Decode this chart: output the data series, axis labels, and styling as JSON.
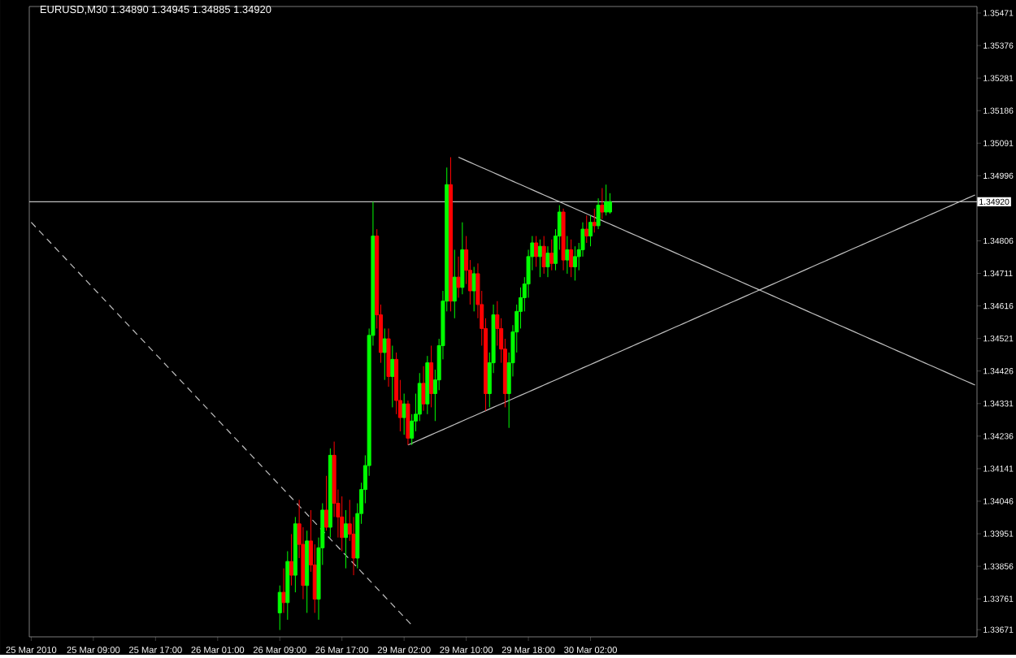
{
  "chart_data": {
    "type": "candlestick",
    "title": "EURUSD,M30  1.34890 1.34945 1.34885 1.34920",
    "categories": [
      "25 Mar 2010",
      null,
      null,
      null,
      null,
      null,
      null,
      null,
      null,
      null,
      null,
      null,
      null,
      null,
      null,
      null,
      "25 Mar 09:00",
      null,
      null,
      null,
      null,
      null,
      null,
      null,
      null,
      null,
      null,
      null,
      null,
      null,
      null,
      null,
      "25 Mar 17:00",
      null,
      null,
      null,
      null,
      null,
      null,
      null,
      null,
      null,
      null,
      null,
      null,
      null,
      null,
      null,
      "26 Mar 01:00",
      null,
      null,
      null,
      null,
      null,
      null,
      null,
      null,
      null,
      null,
      null,
      null,
      null,
      null,
      null,
      "26 Mar 09:00",
      null,
      null,
      null,
      null,
      null,
      null,
      null,
      null,
      null,
      null,
      null,
      null,
      null,
      null,
      null,
      "26 Mar 17:00",
      null,
      null,
      null,
      null,
      null,
      null,
      null,
      null,
      null,
      null,
      null,
      null,
      null,
      null,
      null,
      "29 Mar 02:00",
      null,
      null,
      null,
      null,
      null,
      null,
      null,
      null,
      null,
      null,
      null,
      null,
      null,
      null,
      null,
      "29 Mar 10:00",
      null,
      null,
      null,
      null,
      null,
      null,
      null,
      null,
      null,
      null,
      null,
      null,
      null,
      null,
      null,
      "29 Mar 18:00",
      null,
      null,
      null,
      null,
      null,
      null,
      null,
      null,
      null,
      null,
      null,
      null,
      null,
      null,
      null,
      "30 Mar 02:00",
      null,
      null,
      null,
      null,
      null,
      null,
      null,
      null,
      null,
      null,
      null,
      null,
      null,
      null,
      null,
      null,
      null,
      null,
      null,
      null,
      null,
      null,
      null,
      null,
      null,
      null,
      null,
      null,
      null,
      null,
      null,
      null,
      null,
      null,
      null,
      null,
      null,
      null,
      null,
      null,
      null,
      null,
      null,
      null,
      null,
      null,
      null,
      null,
      null,
      null,
      null,
      null,
      null,
      null,
      null,
      null,
      null,
      null,
      null,
      null,
      null,
      null,
      null,
      null,
      null,
      null,
      null,
      null,
      null,
      null,
      null,
      null,
      null,
      null,
      null,
      null,
      null,
      null,
      null,
      null,
      null,
      null,
      null,
      null,
      null,
      null,
      null,
      null,
      null,
      null,
      null,
      null,
      null,
      null,
      null,
      null,
      null,
      null,
      null
    ],
    "ohlc": [
      null,
      null,
      null,
      null,
      null,
      null,
      null,
      null,
      null,
      null,
      null,
      null,
      null,
      null,
      null,
      null,
      null,
      null,
      null,
      null,
      null,
      null,
      null,
      null,
      null,
      null,
      null,
      null,
      null,
      null,
      null,
      null,
      null,
      null,
      null,
      null,
      null,
      null,
      null,
      null,
      null,
      null,
      null,
      null,
      null,
      null,
      null,
      null,
      null,
      null,
      null,
      null,
      null,
      null,
      null,
      null,
      null,
      null,
      null,
      null,
      null,
      null,
      null,
      null,
      [
        1.3372,
        1.338,
        1.3367,
        1.3378
      ],
      [
        1.3378,
        1.3385,
        1.3372,
        1.3375
      ],
      [
        1.3375,
        1.339,
        1.337,
        1.3387
      ],
      [
        1.3387,
        1.3395,
        1.338,
        1.3383
      ],
      [
        1.3383,
        1.34,
        1.3378,
        1.3398
      ],
      [
        1.3398,
        1.3405,
        1.3388,
        1.3392
      ],
      [
        1.3392,
        1.3397,
        1.3376,
        1.338
      ],
      [
        1.338,
        1.3396,
        1.3372,
        1.3393
      ],
      [
        1.3393,
        1.3402,
        1.3384,
        1.3386
      ],
      [
        1.3386,
        1.3392,
        1.3372,
        1.3376
      ],
      [
        1.3376,
        1.3394,
        1.337,
        1.3391
      ],
      [
        1.3391,
        1.3404,
        1.3386,
        1.3402
      ],
      [
        1.3402,
        1.3412,
        1.3396,
        1.3397
      ],
      [
        1.3397,
        1.342,
        1.3394,
        1.3418
      ],
      [
        1.3418,
        1.3422,
        1.34,
        1.3404
      ],
      [
        1.3404,
        1.3408,
        1.3394,
        1.34
      ],
      [
        1.34,
        1.3406,
        1.339,
        1.3394
      ],
      [
        1.3394,
        1.3402,
        1.3385,
        1.3398
      ],
      [
        1.3398,
        1.3405,
        1.3393,
        1.3395
      ],
      [
        1.3395,
        1.34,
        1.3383,
        1.3388
      ],
      [
        1.3388,
        1.3404,
        1.3385,
        1.3401
      ],
      [
        1.3401,
        1.341,
        1.3398,
        1.3408
      ],
      [
        1.3408,
        1.3418,
        1.3404,
        1.3415
      ],
      [
        1.3415,
        1.3455,
        1.3412,
        1.3453
      ],
      [
        1.3453,
        1.3492,
        1.345,
        1.3482
      ],
      [
        1.3482,
        1.3484,
        1.3455,
        1.3459
      ],
      [
        1.3459,
        1.3462,
        1.3445,
        1.3448
      ],
      [
        1.3448,
        1.3455,
        1.344,
        1.3452
      ],
      [
        1.3452,
        1.3455,
        1.3438,
        1.3441
      ],
      [
        1.3441,
        1.345,
        1.3432,
        1.3446
      ],
      [
        1.3446,
        1.3448,
        1.343,
        1.3434
      ],
      [
        1.3434,
        1.344,
        1.3425,
        1.3429
      ],
      [
        1.3429,
        1.3436,
        1.3424,
        1.3433
      ],
      [
        1.3433,
        1.3434,
        1.3421,
        1.3423
      ],
      [
        1.3423,
        1.343,
        1.3421,
        1.3428
      ],
      [
        1.3428,
        1.3436,
        1.3425,
        1.343
      ],
      [
        1.343,
        1.3442,
        1.3428,
        1.3439
      ],
      [
        1.3439,
        1.3444,
        1.3431,
        1.3433
      ],
      [
        1.3433,
        1.3447,
        1.343,
        1.3445
      ],
      [
        1.3445,
        1.345,
        1.3432,
        1.3436
      ],
      [
        1.3436,
        1.3443,
        1.3428,
        1.344
      ],
      [
        1.344,
        1.3452,
        1.3437,
        1.345
      ],
      [
        1.345,
        1.3466,
        1.3446,
        1.3463
      ],
      [
        1.3463,
        1.3502,
        1.346,
        1.3497
      ],
      [
        1.3497,
        1.3505,
        1.346,
        1.3463
      ],
      [
        1.3463,
        1.3478,
        1.3458,
        1.347
      ],
      [
        1.347,
        1.3476,
        1.3464,
        1.3467
      ],
      [
        1.3467,
        1.3486,
        1.3465,
        1.3478
      ],
      [
        1.3478,
        1.3482,
        1.3468,
        1.3472
      ],
      [
        1.3472,
        1.3475,
        1.3462,
        1.3466
      ],
      [
        1.3466,
        1.3473,
        1.346,
        1.3471
      ],
      [
        1.3471,
        1.3474,
        1.3458,
        1.3462
      ],
      [
        1.3462,
        1.3466,
        1.345,
        1.3455
      ],
      [
        1.3455,
        1.3458,
        1.3431,
        1.3436
      ],
      [
        1.3436,
        1.3448,
        1.3432,
        1.3445
      ],
      [
        1.3445,
        1.3462,
        1.3442,
        1.3459
      ],
      [
        1.3459,
        1.3463,
        1.345,
        1.3455
      ],
      [
        1.3455,
        1.3458,
        1.3445,
        1.3449
      ],
      [
        1.3449,
        1.3452,
        1.3432,
        1.3436
      ],
      [
        1.3436,
        1.3448,
        1.3426,
        1.3445
      ],
      [
        1.3445,
        1.3456,
        1.3441,
        1.3454
      ],
      [
        1.3454,
        1.3462,
        1.3448,
        1.346
      ],
      [
        1.346,
        1.3467,
        1.3455,
        1.3464
      ],
      [
        1.3464,
        1.347,
        1.346,
        1.3468
      ],
      [
        1.3468,
        1.3478,
        1.3464,
        1.3476
      ],
      [
        1.3476,
        1.3482,
        1.3472,
        1.348
      ],
      [
        1.348,
        1.3482,
        1.3473,
        1.3476
      ],
      [
        1.3476,
        1.3481,
        1.347,
        1.3479
      ],
      [
        1.3479,
        1.3482,
        1.3471,
        1.3473
      ],
      [
        1.3473,
        1.3479,
        1.347,
        1.3477
      ],
      [
        1.3477,
        1.3481,
        1.3472,
        1.3474
      ],
      [
        1.3474,
        1.3484,
        1.3472,
        1.3482
      ],
      [
        1.3482,
        1.3491,
        1.3478,
        1.3489
      ],
      [
        1.3489,
        1.349,
        1.3472,
        1.3475
      ],
      [
        1.3475,
        1.3482,
        1.3471,
        1.3478
      ],
      [
        1.3478,
        1.3481,
        1.347,
        1.3473
      ],
      [
        1.3473,
        1.3479,
        1.3469,
        1.3476
      ],
      [
        1.3476,
        1.348,
        1.3472,
        1.3478
      ],
      [
        1.3478,
        1.3486,
        1.3476,
        1.3484
      ],
      [
        1.3484,
        1.3488,
        1.348,
        1.3482
      ],
      [
        1.3482,
        1.3488,
        1.3479,
        1.3486
      ],
      [
        1.3486,
        1.349,
        1.3483,
        1.3485
      ],
      [
        1.3485,
        1.3493,
        1.3484,
        1.3491
      ],
      [
        1.3491,
        1.3496,
        1.3487,
        1.3489
      ],
      [
        1.3489,
        1.3497,
        1.3488,
        1.3492
      ],
      [
        1.3489,
        1.34945,
        1.34885,
        1.3492
      ],
      null,
      null,
      null,
      null,
      null,
      null,
      null,
      null,
      null,
      null,
      null,
      null,
      null,
      null,
      null,
      null,
      null,
      null,
      null,
      null,
      null,
      null,
      null,
      null,
      null,
      null,
      null,
      null,
      null,
      null,
      null,
      null,
      null,
      null,
      null,
      null,
      null,
      null,
      null,
      null,
      null,
      null,
      null,
      null,
      null,
      null,
      null,
      null,
      null,
      null,
      null,
      null,
      null,
      null,
      null,
      null,
      null,
      null,
      null,
      null,
      null,
      null,
      null,
      null,
      null,
      null,
      null,
      null,
      null,
      null,
      null,
      null,
      null,
      null,
      null,
      null,
      null,
      null,
      null,
      null,
      null,
      null,
      null,
      null,
      null,
      null,
      null,
      null,
      null,
      null,
      null,
      null,
      null,
      null
    ],
    "colors": [
      null,
      null,
      null,
      null,
      null,
      null,
      null,
      null,
      null,
      null,
      null,
      null,
      null,
      null,
      null,
      null,
      null,
      null,
      null,
      null,
      null,
      null,
      null,
      null,
      null,
      null,
      null,
      null,
      null,
      null,
      null,
      null,
      null,
      null,
      null,
      null,
      null,
      null,
      null,
      null,
      null,
      null,
      null,
      null,
      null,
      null,
      null,
      null,
      null,
      null,
      null,
      null,
      null,
      null,
      null,
      null,
      null,
      null,
      null,
      null,
      null,
      null,
      null,
      null,
      "#00ff00",
      "#ff0000",
      "#00ff00",
      "#ff0000",
      "#00ff00",
      "#ff0000",
      "#ff0000",
      "#00ff00",
      "#ff0000",
      "#ff0000",
      "#00ff00",
      "#00ff00",
      "#ff0000",
      "#00ff00",
      "#ff0000",
      "#ff0000",
      "#ff0000",
      "#00ff00",
      "#ff0000",
      "#ff0000",
      "#00ff00",
      "#00ff00",
      "#00ff00",
      "#00ff00",
      "#00ff00",
      "#ff0000",
      "#ff0000",
      "#00ff00",
      "#ff0000",
      "#00ff00",
      "#ff0000",
      "#ff0000",
      "#00ff00",
      "#ff0000",
      "#00ff00",
      "#00ff00",
      "#00ff00",
      "#ff0000",
      "#00ff00",
      "#ff0000",
      "#00ff00",
      "#00ff00",
      "#00ff00",
      "#00ff00",
      "#ff0000",
      "#00ff00",
      "#ff0000",
      "#00ff00",
      "#ff0000",
      "#ff0000",
      "#00ff00",
      "#ff0000",
      "#ff0000",
      "#ff0000",
      "#00ff00",
      "#00ff00",
      "#ff0000",
      "#ff0000",
      "#ff0000",
      "#00ff00",
      "#00ff00",
      "#00ff00",
      "#00ff00",
      "#00ff00",
      "#00ff00",
      "#00ff00",
      "#ff0000",
      "#00ff00",
      "#ff0000",
      "#00ff00",
      "#ff0000",
      "#00ff00",
      "#00ff00",
      "#ff0000",
      "#00ff00",
      "#ff0000",
      "#00ff00",
      "#00ff00",
      "#00ff00",
      "#ff0000",
      "#00ff00",
      "#ff0000",
      "#00ff00",
      "#ff0000",
      "#00ff00",
      "#00ff00",
      null,
      null,
      null,
      null,
      null,
      null,
      null,
      null,
      null,
      null,
      null,
      null,
      null,
      null,
      null,
      null,
      null,
      null,
      null,
      null,
      null,
      null,
      null,
      null,
      null,
      null,
      null,
      null,
      null,
      null,
      null,
      null,
      null,
      null,
      null,
      null,
      null,
      null,
      null,
      null,
      null,
      null,
      null,
      null,
      null,
      null,
      null,
      null,
      null,
      null,
      null,
      null,
      null,
      null,
      null,
      null,
      null,
      null,
      null,
      null,
      null,
      null,
      null,
      null,
      null,
      null,
      null,
      null,
      null,
      null,
      null,
      null,
      null,
      null,
      null,
      null,
      null,
      null,
      null,
      null,
      null,
      null,
      null,
      null,
      null,
      null,
      null,
      null,
      null,
      null,
      null,
      null,
      null,
      null
    ],
    "series": [
      {
        "type": "line",
        "color": "#c0c0c0",
        "values": [
          null,
          null,
          null,
          null,
          null,
          null,
          null,
          null,
          null,
          null,
          null,
          null,
          null,
          null,
          null,
          null,
          null,
          null,
          null,
          null,
          null,
          null,
          null,
          null,
          null,
          null,
          null,
          null,
          null,
          null,
          null,
          null,
          null,
          null,
          null,
          null,
          null,
          null,
          null,
          null,
          null,
          null,
          null,
          null,
          null,
          null,
          null,
          null,
          null,
          null,
          null,
          null,
          null,
          null,
          null,
          null,
          null,
          null,
          null,
          null,
          null,
          null,
          null,
          null,
          null,
          null,
          null,
          null,
          null,
          null,
          null,
          null,
          null,
          null,
          null,
          null,
          null,
          null,
          null,
          null,
          null,
          null,
          null,
          null,
          null,
          null,
          null,
          null,
          null,
          null,
          null,
          null,
          null,
          null,
          null,
          null,
          null,
          null,
          null,
          null,
          null,
          null,
          null,
          null,
          null,
          null,
          null,
          null,
          null,
          null,
          1.3505,
          1.35045,
          1.3504,
          1.35035,
          1.3503,
          1.35025,
          1.3502,
          1.35015,
          1.3501,
          1.35005,
          1.35,
          1.34995,
          1.3499,
          1.34985,
          1.3498,
          1.34975,
          1.3497,
          1.34965,
          1.3496,
          1.34955,
          1.3495,
          1.34945,
          1.3494,
          1.34935,
          1.3493,
          1.34925,
          1.3492,
          1.34915,
          1.3491,
          1.34905,
          1.349,
          1.34895,
          1.3489,
          1.34885,
          1.3488,
          1.34875,
          1.3487,
          1.34865,
          1.3486,
          1.34855,
          1.3485,
          1.34845,
          1.3484,
          1.34835,
          1.3483,
          1.34825,
          1.3482,
          1.34815,
          1.3481,
          1.34805,
          1.348,
          1.34795,
          1.3479,
          1.34785,
          1.3478,
          1.34775,
          1.3477,
          1.34765,
          1.3476,
          1.34755,
          1.3475,
          1.34745,
          1.3474,
          1.34735,
          1.3473,
          1.34725,
          1.3472,
          1.34715,
          1.3471,
          1.34705,
          1.347,
          1.34695,
          1.3469,
          1.34685,
          1.3468,
          1.34675,
          1.3467,
          1.34665,
          1.3466,
          1.34655,
          1.3465,
          1.34645,
          1.3464,
          1.34635,
          1.3463,
          1.34625,
          1.3462,
          1.34615,
          1.3461,
          1.34605,
          1.346,
          1.34595,
          1.3459,
          1.34585,
          1.3458,
          1.34575,
          1.3457,
          1.34565,
          1.3456,
          1.34555,
          1.3455,
          1.34545,
          1.3454,
          1.34535,
          1.3453,
          1.34525,
          1.3452,
          1.34515,
          1.3451,
          1.34505,
          1.345,
          1.34495,
          1.3449,
          1.34485,
          1.3448,
          1.34475,
          1.3447,
          1.34465,
          1.3446,
          1.34455,
          1.3445,
          1.34445,
          1.3444,
          1.34435,
          1.3443,
          1.34425,
          1.3442,
          1.34415,
          1.3441,
          1.34405,
          1.344,
          1.34395,
          1.3439,
          1.34385
        ]
      },
      {
        "type": "line",
        "color": "#c0c0c0",
        "values": [
          null,
          null,
          null,
          null,
          null,
          null,
          null,
          null,
          null,
          null,
          null,
          null,
          null,
          null,
          null,
          null,
          null,
          null,
          null,
          null,
          null,
          null,
          null,
          null,
          null,
          null,
          null,
          null,
          null,
          null,
          null,
          null,
          null,
          null,
          null,
          null,
          null,
          null,
          null,
          null,
          null,
          null,
          null,
          null,
          null,
          null,
          null,
          null,
          null,
          null,
          null,
          null,
          null,
          null,
          null,
          null,
          null,
          null,
          null,
          null,
          null,
          null,
          null,
          null,
          null,
          null,
          null,
          null,
          null,
          null,
          null,
          null,
          null,
          null,
          null,
          null,
          null,
          null,
          null,
          null,
          null,
          null,
          null,
          null,
          null,
          null,
          null,
          null,
          null,
          null,
          null,
          null,
          null,
          null,
          null,
          null,
          null,
          1.3421,
          1.34215,
          1.3422,
          1.34225,
          1.3423,
          1.34235,
          1.3424,
          1.34245,
          1.3425,
          1.34255,
          1.3426,
          1.34265,
          1.3427,
          1.34275,
          1.3428,
          1.34285,
          1.3429,
          1.34295,
          1.343,
          1.34305,
          1.3431,
          1.34315,
          1.3432,
          1.34325,
          1.3433,
          1.34335,
          1.3434,
          1.34345,
          1.3435,
          1.34355,
          1.3436,
          1.34365,
          1.3437,
          1.34375,
          1.3438,
          1.34385,
          1.3439,
          1.34395,
          1.344,
          1.34405,
          1.3441,
          1.34415,
          1.3442,
          1.34425,
          1.3443,
          1.34435,
          1.3444,
          1.34445,
          1.3445,
          1.34455,
          1.3446,
          1.34465,
          1.3447,
          1.34475,
          1.3448,
          1.34485,
          1.3449,
          1.34495,
          1.345,
          1.34505,
          1.3451,
          1.34515,
          1.3452,
          1.34525,
          1.3453,
          1.34535,
          1.3454,
          1.34545,
          1.3455,
          1.34555,
          1.3456,
          1.34565,
          1.3457,
          1.34575,
          1.3458,
          1.34585,
          1.3459,
          1.34595,
          1.346,
          1.34605,
          1.3461,
          1.34615,
          1.3462,
          1.34625,
          1.3463,
          1.34635,
          1.3464,
          1.34645,
          1.3465,
          1.34655,
          1.3466,
          1.34665,
          1.3467,
          1.34675,
          1.3468,
          1.34685,
          1.3469,
          1.34695,
          1.347,
          1.34705,
          1.3471,
          1.34715,
          1.3472,
          1.34725,
          1.3473,
          1.34735,
          1.3474,
          1.34745,
          1.3475,
          1.34755,
          1.3476,
          1.34765,
          1.3477,
          1.34775,
          1.3478,
          1.34785,
          1.3479,
          1.34795,
          1.348,
          1.34805,
          1.3481,
          1.34815,
          1.3482,
          1.34825,
          1.3483,
          1.34835,
          1.3484,
          1.34845,
          1.3485,
          1.34855,
          1.3486,
          1.34865,
          1.3487,
          1.34875,
          1.3488,
          1.34885,
          1.3489,
          1.34895,
          1.349,
          1.34905,
          1.3491,
          1.34915,
          1.3492,
          1.34925,
          1.3493,
          1.34935,
          1.3494
        ]
      },
      {
        "type": "line",
        "color": "#c0c0c0",
        "line_style": "dashed",
        "values": [
          1.3486,
          1.34848,
          1.34836,
          1.34824,
          1.34812,
          1.348,
          1.34788,
          1.34776,
          1.34764,
          1.34752,
          1.3474,
          1.34728,
          1.34716,
          1.34704,
          1.34692,
          1.3468,
          1.34668,
          1.34656,
          1.34644,
          1.34632,
          1.3462,
          1.34608,
          1.34596,
          1.34584,
          1.34572,
          1.3456,
          1.34548,
          1.34536,
          1.34524,
          1.34512,
          1.345,
          1.34488,
          1.34476,
          1.34464,
          1.34452,
          1.3444,
          1.34428,
          1.34416,
          1.34404,
          1.34392,
          1.3438,
          1.34368,
          1.34356,
          1.34344,
          1.34332,
          1.3432,
          1.34308,
          1.34296,
          1.34284,
          1.34272,
          1.3426,
          1.34248,
          1.34236,
          1.34224,
          1.34212,
          1.342,
          1.34188,
          1.34176,
          1.34164,
          1.34152,
          1.3414,
          1.34128,
          1.34116,
          1.34104,
          1.34092,
          1.3408,
          1.34068,
          1.34056,
          1.34044,
          1.34032,
          1.3402,
          1.34008,
          1.33996,
          1.33984,
          1.33972,
          1.3396,
          1.33948,
          1.33936,
          1.33924,
          1.33912,
          1.339,
          1.33888,
          1.33876,
          1.33864,
          1.33852,
          1.3384,
          1.33828,
          1.33816,
          1.33804,
          1.33792,
          1.3378,
          1.33768,
          1.33756,
          1.33744,
          1.33732,
          1.3372,
          1.33708,
          1.33696,
          1.33684,
          null,
          null,
          null,
          null,
          null,
          null,
          null,
          null,
          null,
          null,
          null,
          null,
          null,
          null,
          null,
          null,
          null,
          null,
          null,
          null,
          null,
          null,
          null,
          null,
          null,
          null,
          null,
          null,
          null,
          null,
          null,
          null,
          null,
          null,
          null,
          null,
          null,
          null,
          null,
          null,
          null,
          null,
          null,
          null,
          null,
          null,
          null,
          null,
          null,
          null,
          null,
          null,
          null,
          null,
          null,
          null,
          null,
          null,
          null,
          null,
          null,
          null,
          null,
          null,
          null,
          null,
          null,
          null,
          null,
          null,
          null,
          null,
          null,
          null,
          null,
          null,
          null,
          null,
          null,
          null,
          null,
          null,
          null,
          null,
          null,
          null,
          null,
          null,
          null,
          null,
          null,
          null,
          null,
          null,
          null,
          null,
          null,
          null,
          null,
          null,
          null,
          null,
          null,
          null,
          null,
          null,
          null,
          null,
          null,
          null,
          null,
          null,
          null,
          null,
          null,
          null,
          null,
          null,
          null,
          null,
          null,
          null,
          null,
          null,
          null,
          null,
          null,
          null,
          null,
          null,
          null,
          null,
          null,
          null,
          null,
          null,
          null,
          null,
          null,
          null,
          null,
          null,
          null,
          null,
          null
        ]
      }
    ],
    "ref_lines": [
      {
        "axis": "y",
        "value": 1.3492,
        "label": "1.34920",
        "color": "#c0c0c0"
      }
    ],
    "ylim": [
      1.3365,
      1.3549
    ],
    "yticks": [
      1.35471,
      1.35376,
      1.35281,
      1.35186,
      1.35091,
      1.34996,
      1.34806,
      1.34711,
      1.34616,
      1.34521,
      1.34426,
      1.34331,
      1.34236,
      1.34141,
      1.34046,
      1.33951,
      1.33856,
      1.33761,
      1.33671
    ]
  }
}
